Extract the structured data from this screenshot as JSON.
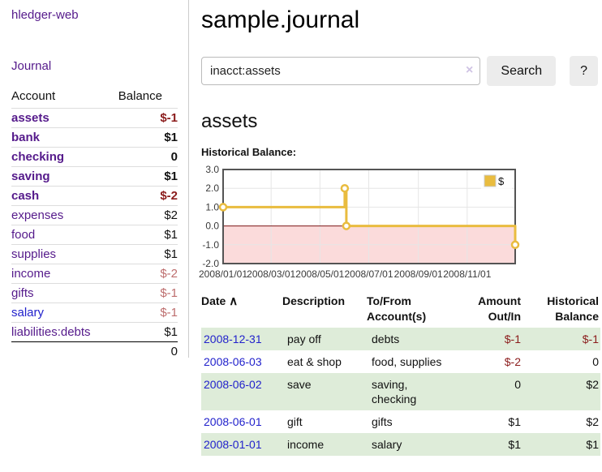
{
  "app": {
    "brand": "hledger-web",
    "nav_journal": "Journal"
  },
  "colors": {
    "link_purple": "#551a8b",
    "link_blue": "#2222cc",
    "negative_strong": "#8b1c1c",
    "negative_soft": "#bd6d6d",
    "row_shade_green": "#deecd9",
    "divider_gray": "#cccccc",
    "chart_line_gold": "#e9bc3f",
    "chart_negative_fill": "#fbdbdb",
    "chart_zero_line": "#7d1616",
    "chart_grid": "#e6e6e6",
    "chart_border": "#545454"
  },
  "sidebar": {
    "table_headers": {
      "account": "Account",
      "balance": "Balance"
    },
    "accounts": [
      {
        "name": "assets",
        "depth": 1,
        "bold": true,
        "link": "purple",
        "balance": "$-1",
        "neg": "strong"
      },
      {
        "name": "bank",
        "depth": 2,
        "bold": true,
        "link": "purple",
        "balance": "$1",
        "neg": null
      },
      {
        "name": "checking",
        "depth": 3,
        "bold": true,
        "link": "purple",
        "balance": "0",
        "neg": null
      },
      {
        "name": "saving",
        "depth": 3,
        "bold": true,
        "link": "purple",
        "balance": "$1",
        "neg": null
      },
      {
        "name": "cash",
        "depth": 2,
        "bold": true,
        "link": "purple",
        "balance": "$-2",
        "neg": "strong"
      },
      {
        "name": "expenses",
        "depth": 1,
        "bold": false,
        "link": "purple",
        "balance": "$2",
        "neg": null
      },
      {
        "name": "food",
        "depth": 2,
        "bold": false,
        "link": "purple",
        "balance": "$1",
        "neg": null
      },
      {
        "name": "supplies",
        "depth": 2,
        "bold": false,
        "link": "purple",
        "balance": "$1",
        "neg": null
      },
      {
        "name": "income",
        "depth": 1,
        "bold": false,
        "link": "purple",
        "balance": "$-2",
        "neg": "soft"
      },
      {
        "name": "gifts",
        "depth": 2,
        "bold": false,
        "link": "purple",
        "balance": "$-1",
        "neg": "soft"
      },
      {
        "name": "salary",
        "depth": 2,
        "bold": false,
        "link": "blue",
        "balance": "$-1",
        "neg": "soft"
      },
      {
        "name": "liabilities:debts",
        "depth": 1,
        "bold": false,
        "link": "purple",
        "balance": "$1",
        "neg": null
      }
    ],
    "total": "0"
  },
  "header": {
    "title": "sample.journal"
  },
  "search": {
    "query": "inacct:assets",
    "clear_icon": "×",
    "button": "Search",
    "help_button": "?"
  },
  "register": {
    "heading": "assets",
    "chart_label": "Historical Balance:"
  },
  "chart_data": {
    "type": "line",
    "title": "Historical Balance",
    "xlabel": "",
    "ylabel": "",
    "xlim": [
      "2008-01-01",
      "2008-12-31"
    ],
    "ylim": [
      -2,
      3
    ],
    "y_ticks": [
      "3.0",
      "2.0",
      "1.0",
      "0.0",
      "-1.0",
      "-2.0"
    ],
    "x_ticks": [
      "2008/01/01",
      "2008/03/01",
      "2008/05/01",
      "2008/07/01",
      "2008/09/01",
      "2008/11/01"
    ],
    "grid": true,
    "legend": {
      "label": "$",
      "position": "top-right"
    },
    "series": [
      {
        "name": "$",
        "color": "#e9bc3f",
        "points": [
          [
            "2008-01-01",
            1
          ],
          [
            "2008-06-01",
            1
          ],
          [
            "2008-06-01",
            2
          ],
          [
            "2008-06-03",
            2
          ],
          [
            "2008-06-03",
            0
          ],
          [
            "2008-12-31",
            0
          ],
          [
            "2008-12-31",
            -1
          ]
        ],
        "markers": [
          [
            "2008-01-01",
            1
          ],
          [
            "2008-06-01",
            2
          ],
          [
            "2008-06-03",
            0
          ],
          [
            "2008-12-31",
            -1
          ]
        ]
      }
    ],
    "negative_region_color": "#fbdbdb",
    "zero_line_color": "#7d1616"
  },
  "table": {
    "headers": {
      "date": "Date",
      "sort_icon": "∧",
      "description": "Description",
      "accounts": "To/From Account(s)",
      "amount": "Amount Out/In",
      "balance": "Historical Balance"
    },
    "rows": [
      {
        "date": "2008-12-31",
        "description": "pay off",
        "accounts": "debts",
        "amount": "$-1",
        "amount_neg": true,
        "balance": "$-1",
        "balance_neg": true,
        "shaded": true
      },
      {
        "date": "2008-06-03",
        "description": "eat & shop",
        "accounts": "food, supplies",
        "amount": "$-2",
        "amount_neg": true,
        "balance": "0",
        "balance_neg": false,
        "shaded": false
      },
      {
        "date": "2008-06-02",
        "description": "save",
        "accounts": "saving, checking",
        "amount": "0",
        "amount_neg": false,
        "balance": "$2",
        "balance_neg": false,
        "shaded": true
      },
      {
        "date": "2008-06-01",
        "description": "gift",
        "accounts": "gifts",
        "amount": "$1",
        "amount_neg": false,
        "balance": "$2",
        "balance_neg": false,
        "shaded": false
      },
      {
        "date": "2008-01-01",
        "description": "income",
        "accounts": "salary",
        "amount": "$1",
        "amount_neg": false,
        "balance": "$1",
        "balance_neg": false,
        "shaded": true
      }
    ]
  }
}
